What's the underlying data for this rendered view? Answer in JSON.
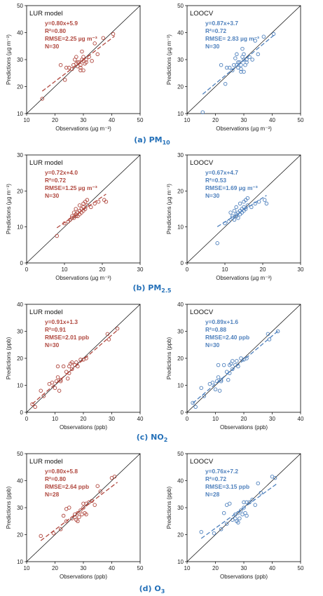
{
  "colors": {
    "lur": "#b0483f",
    "loocv": "#4f81bd",
    "caption": "#2470b8"
  },
  "chart_data": [
    {
      "type": "scatter",
      "title": "LUR model",
      "caption_main": "(a) PM",
      "caption_sub": "10",
      "xlabel": "Observations (µg m⁻³)",
      "ylabel": "Predictions (µg m⁻³)",
      "xlim": [
        10,
        50
      ],
      "ylim": [
        10,
        50
      ],
      "ticks": [
        10,
        20,
        30,
        40,
        50
      ],
      "fit": {
        "slope": 0.8,
        "intercept": 5.9,
        "x_range": [
          15.5,
          41
        ]
      },
      "stats": [
        "y=0.80x+5.9",
        "R²=0.80",
        "RMSE=2.25 µg m⁻³",
        "N=30"
      ],
      "x": [
        15.5,
        22,
        23.5,
        24,
        25,
        26,
        26.5,
        27,
        27.5,
        27.5,
        28,
        28,
        28.5,
        29,
        29,
        29,
        29.5,
        29.5,
        30,
        30,
        30,
        30.5,
        31,
        31,
        32,
        33,
        34,
        35,
        37,
        40.5
      ],
      "y": [
        15.5,
        28,
        22.5,
        27,
        27,
        26.5,
        28,
        30,
        28.5,
        31,
        27.5,
        29,
        29,
        27,
        28,
        26,
        30,
        33,
        31,
        26,
        29.5,
        28.5,
        29,
        30,
        31,
        29.5,
        36,
        32,
        38,
        39.5
      ]
    },
    {
      "type": "scatter",
      "title": "LOOCV",
      "caption_main": "",
      "caption_sub": "",
      "xlabel": "Observations (µg m⁻³)",
      "ylabel": "Predictions (µg m⁻³)",
      "xlim": [
        10,
        50
      ],
      "ylim": [
        10,
        50
      ],
      "ticks": [
        10,
        20,
        30,
        40,
        50
      ],
      "fit": {
        "slope": 0.87,
        "intercept": 3.7,
        "x_range": [
          15.5,
          41
        ]
      },
      "stats": [
        "y=0.87x+3.7",
        "R²=0.72",
        "RMSE= 2.83 µg m⁻³",
        "N=30"
      ],
      "x": [
        15.5,
        22,
        23.5,
        24,
        25,
        26,
        26.5,
        27,
        27.5,
        27.5,
        28,
        28,
        28.5,
        29,
        29,
        29,
        29.5,
        29.5,
        30,
        30,
        30,
        30.5,
        31,
        31,
        32,
        33,
        34,
        35,
        37,
        40.5
      ],
      "y": [
        10.5,
        28,
        21,
        27,
        27,
        26,
        28,
        30.5,
        28,
        32,
        27,
        29,
        29,
        26.5,
        28,
        25.5,
        31,
        34,
        32,
        25.5,
        30,
        28,
        29,
        30,
        31,
        30,
        37,
        32,
        38.5,
        39.5
      ]
    },
    {
      "type": "scatter",
      "title": "LUR model",
      "caption_main": "(b) PM",
      "caption_sub": "2.5",
      "xlabel": "Observations (µg m⁻³)",
      "ylabel": "Predictions (µg m⁻³)",
      "xlim": [
        0,
        30
      ],
      "ylim": [
        0,
        30
      ],
      "ticks": [
        0,
        10,
        20,
        30
      ],
      "fit": {
        "slope": 0.72,
        "intercept": 4.0,
        "x_range": [
          8,
          21
        ]
      },
      "stats": [
        "y=0.72x+4.0",
        "R²=0.72",
        "RMSE=1.25 µg m⁻³",
        "N=30"
      ],
      "x": [
        8,
        10,
        11,
        11.5,
        12,
        12,
        12.5,
        12.5,
        13,
        13,
        13,
        13.5,
        13.5,
        14,
        14,
        14,
        14.5,
        14.5,
        15,
        15,
        15,
        15.5,
        15.5,
        16,
        16,
        17,
        18,
        19,
        20.5,
        21
      ],
      "y": [
        7.5,
        11,
        11.5,
        12,
        12.5,
        13,
        12.5,
        14,
        13,
        13.5,
        15,
        13,
        14,
        13.5,
        14.5,
        16,
        14,
        15,
        14.5,
        15.5,
        16.5,
        15,
        17,
        16,
        17.5,
        15.5,
        16.5,
        17,
        17.5,
        17
      ]
    },
    {
      "type": "scatter",
      "title": "LOOCV",
      "caption_main": "",
      "caption_sub": "",
      "xlabel": "Observations (µg m⁻³)",
      "ylabel": "Predictions (µg m⁻³)",
      "xlim": [
        0,
        30
      ],
      "ylim": [
        0,
        30
      ],
      "ticks": [
        0,
        10,
        20,
        30
      ],
      "fit": {
        "slope": 0.67,
        "intercept": 4.7,
        "x_range": [
          8,
          21
        ]
      },
      "stats": [
        "y=0.67x+4.7",
        "R²=0.53",
        "RMSE=1.69 µg m⁻³",
        "N=30"
      ],
      "x": [
        8,
        10,
        11,
        11.5,
        12,
        12,
        12.5,
        12.5,
        13,
        13,
        13,
        13.5,
        13.5,
        14,
        14,
        14,
        14.5,
        14.5,
        15,
        15,
        15,
        15.5,
        15.5,
        16,
        16,
        17,
        18,
        19,
        20.5,
        21
      ],
      "y": [
        5.5,
        11,
        11.5,
        14,
        12.5,
        13,
        12,
        14.5,
        13,
        13.5,
        15.5,
        12.5,
        14,
        13.5,
        14.5,
        16.5,
        14,
        15,
        14.5,
        15.5,
        17,
        15,
        17.5,
        16,
        18,
        15.5,
        16.5,
        17,
        17.5,
        16.5
      ]
    },
    {
      "type": "scatter",
      "title": "LUR model",
      "caption_main": "(c) NO",
      "caption_sub": "2",
      "xlabel": "Observations (ppb)",
      "ylabel": "Predictions (ppb)",
      "xlim": [
        0,
        40
      ],
      "ylim": [
        0,
        40
      ],
      "ticks": [
        0,
        10,
        20,
        30,
        40
      ],
      "fit": {
        "slope": 0.91,
        "intercept": 1.3,
        "x_range": [
          2,
          32
        ]
      },
      "stats": [
        "y=0.91x+1.3",
        "R²=0.91",
        "RMSE=2.01 ppb",
        "N=30"
      ],
      "x": [
        2,
        3,
        5,
        6,
        8,
        9,
        10,
        10.5,
        11,
        11,
        11.5,
        12,
        12,
        13,
        14,
        14.5,
        15,
        15,
        15.5,
        16,
        16,
        17,
        17.5,
        18,
        19,
        20,
        21,
        28.5,
        29,
        32
      ],
      "y": [
        3,
        2,
        8,
        6,
        10.5,
        11,
        9,
        11.5,
        13,
        17,
        8,
        11.5,
        12,
        17,
        15,
        12.5,
        14.5,
        17,
        18,
        18.5,
        16,
        17.5,
        18.5,
        17,
        19.5,
        19.5,
        20,
        29,
        27,
        31
      ]
    },
    {
      "type": "scatter",
      "title": "LOOCV",
      "caption_main": "",
      "caption_sub": "",
      "xlabel": "Observations (ppb)",
      "ylabel": "Predictions (ppb)",
      "xlim": [
        0,
        40
      ],
      "ylim": [
        0,
        40
      ],
      "ticks": [
        0,
        10,
        20,
        30,
        40
      ],
      "fit": {
        "slope": 0.89,
        "intercept": 1.6,
        "x_range": [
          2,
          32
        ]
      },
      "stats": [
        "y=0.89x+1.6",
        "R²=0.88",
        "RMSE=2.40 ppb",
        "N=30"
      ],
      "x": [
        2,
        3,
        5,
        6,
        8,
        9,
        10,
        10.5,
        11,
        11,
        11.5,
        12,
        12,
        13,
        14,
        14.5,
        15,
        15,
        15.5,
        16,
        16,
        17,
        17.5,
        18,
        19,
        20,
        21,
        28.5,
        29,
        32
      ],
      "y": [
        3.5,
        2,
        9,
        6,
        10.5,
        11,
        8.5,
        11.5,
        13,
        17.5,
        8,
        11.5,
        12,
        17.5,
        15,
        12,
        14.5,
        17.5,
        18,
        19,
        16,
        17.5,
        19,
        17,
        20,
        19.5,
        20,
        29,
        27,
        30
      ]
    },
    {
      "type": "scatter",
      "title": "LUR model",
      "caption_main": "(d) O",
      "caption_sub": "3",
      "xlabel": "Observations (ppb)",
      "ylabel": "Predictions (ppb)",
      "xlim": [
        10,
        50
      ],
      "ylim": [
        10,
        50
      ],
      "ticks": [
        10,
        20,
        30,
        40,
        50
      ],
      "fit": {
        "slope": 0.8,
        "intercept": 5.8,
        "x_range": [
          15,
          42
        ]
      },
      "stats": [
        "y=0.80x+5.8",
        "R²=0.80",
        "RMSE=2.64 ppb",
        "N=28"
      ],
      "x": [
        15,
        19.5,
        22,
        23,
        24,
        24,
        25,
        26,
        27,
        27,
        27.5,
        28,
        28,
        28.5,
        29,
        29.5,
        30,
        30,
        30.5,
        31,
        31,
        32,
        33,
        34,
        35,
        36,
        40,
        41
      ],
      "y": [
        19.5,
        20.5,
        22,
        27,
        29.5,
        25,
        30,
        26,
        26.5,
        27.5,
        25.5,
        28,
        25,
        26.5,
        29,
        27.5,
        31.5,
        30,
        28,
        27.5,
        31.5,
        32,
        32.5,
        31,
        38,
        36,
        41,
        41.5
      ]
    },
    {
      "type": "scatter",
      "title": "LOOCV",
      "caption_main": "",
      "caption_sub": "",
      "xlabel": "Observations (ppb)",
      "ylabel": "Predictions (ppb)",
      "xlim": [
        10,
        50
      ],
      "ylim": [
        10,
        50
      ],
      "ticks": [
        10,
        20,
        30,
        40,
        50
      ],
      "fit": {
        "slope": 0.76,
        "intercept": 7.2,
        "x_range": [
          15,
          42
        ]
      },
      "stats": [
        "y=0.76x+7.2",
        "R²=0.72",
        "RMSE=3.15 ppb",
        "N=28"
      ],
      "x": [
        15,
        19.5,
        22,
        23,
        24,
        24,
        25,
        26,
        27,
        27,
        27.5,
        28,
        28,
        28.5,
        29,
        29.5,
        30,
        30,
        30.5,
        31,
        31,
        32,
        33,
        34,
        35,
        36,
        40,
        41
      ],
      "y": [
        21,
        20.5,
        22,
        28,
        31,
        24,
        31.5,
        25.5,
        26,
        27.5,
        25,
        28,
        24.5,
        26,
        29,
        27.5,
        32,
        30,
        28,
        27,
        32,
        32,
        33,
        31,
        39,
        35.5,
        41.5,
        41
      ]
    }
  ]
}
